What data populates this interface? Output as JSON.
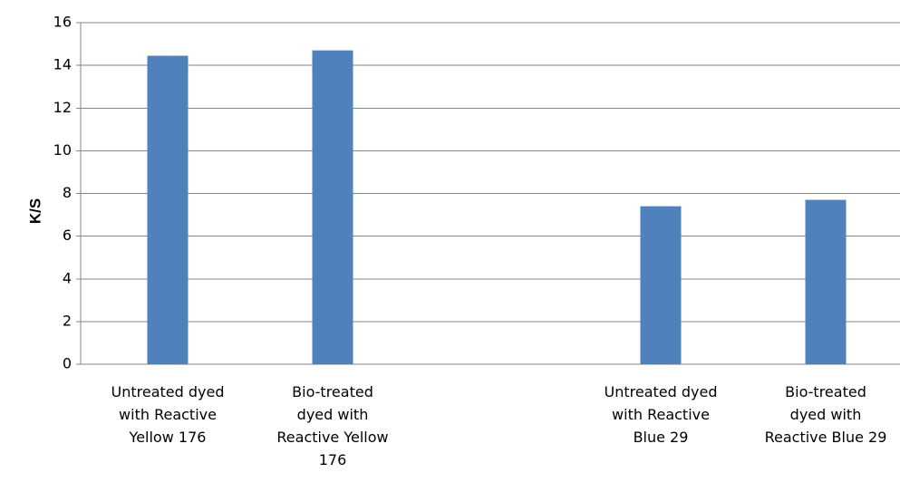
{
  "chart_data": {
    "type": "bar",
    "ylabel": "K/S",
    "ylim": [
      0,
      16
    ],
    "y_ticks": [
      0,
      2,
      4,
      6,
      8,
      10,
      12,
      14,
      16
    ],
    "grid": true,
    "categories": [
      [
        "Untreated dyed",
        "with Reactive",
        "Yellow 176"
      ],
      [
        "Bio-treated",
        "dyed with",
        "Reactive Yellow",
        "176"
      ],
      [
        "Untreated dyed",
        "with Reactive",
        "Blue 29"
      ],
      [
        "Bio-treated",
        "dyed with",
        "Reactive Blue 29"
      ]
    ],
    "values": [
      14.45,
      14.7,
      7.4,
      7.7
    ],
    "bar_color": "#4f81bd"
  }
}
